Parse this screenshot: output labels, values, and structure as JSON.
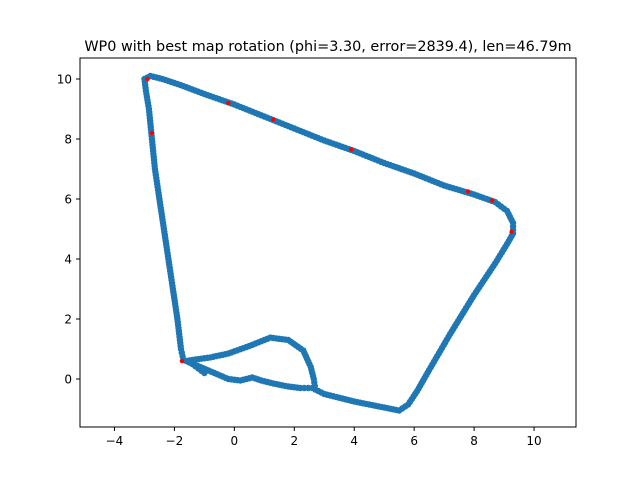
{
  "chart_data": {
    "type": "scatter",
    "title": "WP0 with best map rotation (phi=3.30, error=2839.4), len=46.79m",
    "xlabel": "",
    "ylabel": "",
    "xlim": [
      -5.15,
      11.4
    ],
    "ylim": [
      -1.6,
      10.7
    ],
    "xticks": [
      -4,
      -2,
      0,
      2,
      4,
      6,
      8,
      10
    ],
    "yticks": [
      0,
      2,
      4,
      6,
      8,
      10
    ],
    "grid": false,
    "series": [
      {
        "style": "line",
        "color": "#ff0000",
        "points": [
          [
            -1.05,
            0.2
          ],
          [
            -1.15,
            0.3
          ],
          [
            -1.3,
            0.45
          ],
          [
            -1.45,
            0.55
          ],
          [
            -1.6,
            0.6
          ],
          [
            -1.75,
            0.65
          ],
          [
            -1.85,
            1.2
          ],
          [
            -2.0,
            2.2
          ],
          [
            -2.15,
            3.2
          ],
          [
            -2.3,
            4.2
          ],
          [
            -2.45,
            5.2
          ],
          [
            -2.6,
            6.2
          ],
          [
            -2.7,
            7.2
          ],
          [
            -2.8,
            8.2
          ],
          [
            -2.9,
            9.0
          ],
          [
            -2.95,
            9.6
          ],
          [
            -2.95,
            10.0
          ],
          [
            -2.8,
            10.1
          ],
          [
            -2.4,
            10.0
          ],
          [
            -1.8,
            9.8
          ],
          [
            -1.0,
            9.5
          ],
          [
            0.0,
            9.15
          ],
          [
            1.0,
            8.75
          ],
          [
            2.0,
            8.35
          ],
          [
            3.0,
            7.95
          ],
          [
            4.0,
            7.6
          ],
          [
            5.0,
            7.2
          ],
          [
            6.0,
            6.85
          ],
          [
            7.0,
            6.45
          ],
          [
            8.0,
            6.15
          ],
          [
            8.7,
            5.9
          ],
          [
            9.1,
            5.6
          ],
          [
            9.3,
            5.2
          ],
          [
            9.3,
            4.85
          ],
          [
            9.1,
            4.5
          ],
          [
            8.7,
            3.85
          ],
          [
            8.0,
            2.8
          ],
          [
            7.2,
            1.5
          ],
          [
            6.5,
            0.3
          ],
          [
            6.1,
            -0.4
          ],
          [
            5.8,
            -0.85
          ],
          [
            5.5,
            -1.05
          ],
          [
            5.0,
            -0.95
          ],
          [
            4.0,
            -0.75
          ],
          [
            3.0,
            -0.5
          ],
          [
            2.7,
            -0.35
          ],
          [
            2.6,
            0.0
          ],
          [
            2.55,
            0.4
          ],
          [
            2.3,
            0.95
          ],
          [
            1.8,
            1.3
          ],
          [
            1.2,
            1.35
          ],
          [
            0.5,
            1.1
          ],
          [
            -0.2,
            0.85
          ],
          [
            -0.8,
            0.72
          ],
          [
            -1.3,
            0.65
          ],
          [
            -1.6,
            0.6
          ]
        ]
      },
      {
        "style": "markers",
        "color": "#1f77b4",
        "points": [
          [
            -1.0,
            0.2
          ],
          [
            -1.2,
            0.35
          ],
          [
            -1.4,
            0.5
          ],
          [
            -1.6,
            0.6
          ],
          [
            -1.7,
            0.63
          ],
          [
            -1.78,
            1.0
          ],
          [
            -1.9,
            2.0
          ],
          [
            -2.05,
            3.0
          ],
          [
            -2.2,
            4.0
          ],
          [
            -2.35,
            5.0
          ],
          [
            -2.5,
            6.0
          ],
          [
            -2.65,
            7.0
          ],
          [
            -2.75,
            8.0
          ],
          [
            -2.85,
            9.0
          ],
          [
            -2.95,
            9.6
          ],
          [
            -3.0,
            10.0
          ],
          [
            -2.8,
            10.1
          ],
          [
            -2.4,
            10.0
          ],
          [
            -1.8,
            9.8
          ],
          [
            -1.0,
            9.5
          ],
          [
            0.0,
            9.15
          ],
          [
            1.0,
            8.75
          ],
          [
            2.0,
            8.35
          ],
          [
            3.0,
            7.95
          ],
          [
            4.0,
            7.6
          ],
          [
            5.0,
            7.2
          ],
          [
            6.0,
            6.85
          ],
          [
            7.0,
            6.45
          ],
          [
            8.0,
            6.15
          ],
          [
            8.7,
            5.9
          ],
          [
            9.1,
            5.6
          ],
          [
            9.3,
            5.2
          ],
          [
            9.3,
            4.85
          ],
          [
            9.1,
            4.5
          ],
          [
            8.7,
            3.85
          ],
          [
            8.0,
            2.8
          ],
          [
            7.2,
            1.5
          ],
          [
            6.5,
            0.3
          ],
          [
            6.1,
            -0.4
          ],
          [
            5.8,
            -0.85
          ],
          [
            5.5,
            -1.05
          ],
          [
            5.0,
            -0.95
          ],
          [
            4.0,
            -0.75
          ],
          [
            3.0,
            -0.5
          ],
          [
            2.7,
            -0.35
          ],
          [
            2.65,
            0.0
          ],
          [
            2.55,
            0.4
          ],
          [
            2.3,
            0.95
          ],
          [
            1.8,
            1.3
          ],
          [
            1.2,
            1.38
          ],
          [
            0.5,
            1.1
          ],
          [
            -0.2,
            0.85
          ],
          [
            -0.8,
            0.72
          ],
          [
            -1.3,
            0.65
          ],
          [
            -1.6,
            0.6
          ],
          [
            -0.2,
            0.0
          ],
          [
            0.2,
            -0.05
          ],
          [
            0.6,
            0.05
          ],
          [
            0.9,
            -0.05
          ],
          [
            1.3,
            -0.15
          ],
          [
            1.8,
            -0.25
          ],
          [
            2.2,
            -0.3
          ],
          [
            2.6,
            -0.3
          ]
        ]
      }
    ]
  }
}
